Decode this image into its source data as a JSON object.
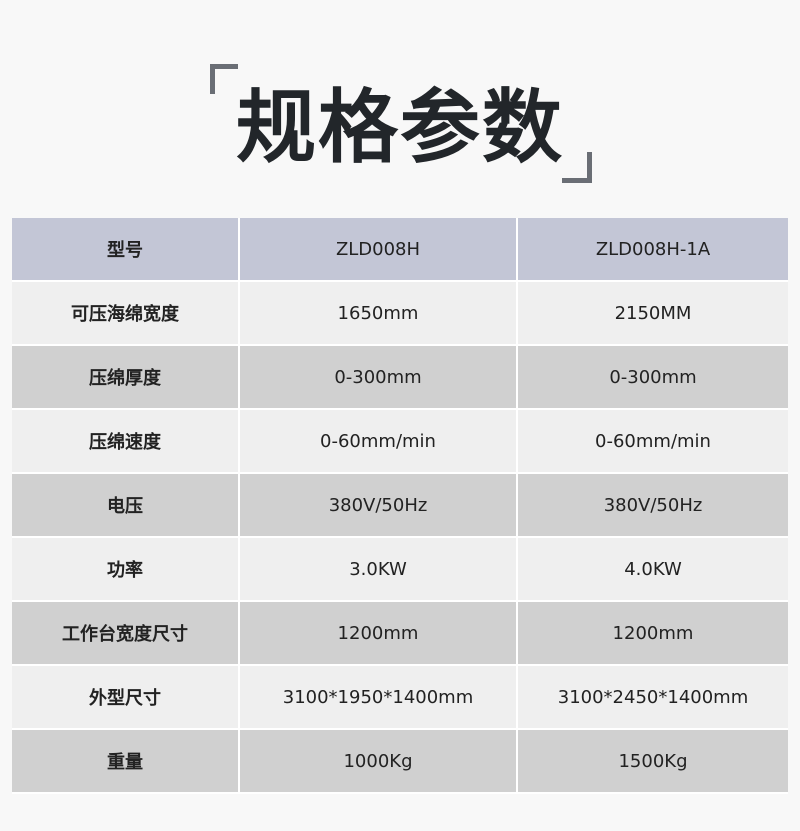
{
  "title": "规格参数",
  "colors": {
    "header_bg": "#c3c6d6",
    "row_light": "#efefef",
    "row_dark": "#d0d0d0",
    "bracket": "#6a6e75"
  },
  "table": {
    "header": [
      "型号",
      "ZLD008H",
      "ZLD008H-1A"
    ],
    "rows": [
      [
        "可压海绵宽度",
        "1650mm",
        "2150MM"
      ],
      [
        "压绵厚度",
        "0-300mm",
        "0-300mm"
      ],
      [
        "压绵速度",
        "0-60mm/min",
        "0-60mm/min"
      ],
      [
        "电压",
        "380V/50Hz",
        "380V/50Hz"
      ],
      [
        "功率",
        "3.0KW",
        "4.0KW"
      ],
      [
        "工作台宽度尺寸",
        "1200mm",
        "1200mm"
      ],
      [
        "外型尺寸",
        "3100*1950*1400mm",
        "3100*2450*1400mm"
      ],
      [
        "重量",
        "1000Kg",
        "1500Kg"
      ]
    ]
  }
}
